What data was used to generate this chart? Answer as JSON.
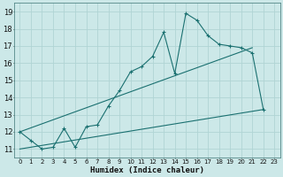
{
  "xlabel": "Humidex (Indice chaleur)",
  "bg_color": "#cce8e8",
  "grid_color": "#b0d4d4",
  "line_color": "#1a7070",
  "xlim": [
    -0.5,
    23.5
  ],
  "ylim": [
    10.5,
    19.5
  ],
  "xticks": [
    0,
    1,
    2,
    3,
    4,
    5,
    6,
    7,
    8,
    9,
    10,
    11,
    12,
    13,
    14,
    15,
    16,
    17,
    18,
    19,
    20,
    21,
    22,
    23
  ],
  "yticks": [
    11,
    12,
    13,
    14,
    15,
    16,
    17,
    18,
    19
  ],
  "line1_x": [
    0,
    1,
    2,
    3,
    4,
    5,
    6,
    7,
    8,
    9,
    10,
    11,
    12,
    13,
    14,
    15,
    16,
    17,
    18,
    19,
    20,
    21,
    22
  ],
  "line1_y": [
    12.0,
    11.5,
    11.0,
    11.1,
    12.2,
    11.1,
    12.3,
    12.4,
    13.5,
    14.4,
    15.5,
    15.8,
    16.4,
    17.8,
    15.4,
    18.9,
    18.5,
    17.6,
    17.1,
    17.0,
    16.9,
    16.6,
    13.3
  ],
  "line2_x": [
    0,
    21
  ],
  "line2_y": [
    12.0,
    16.9
  ],
  "line3_x": [
    0,
    22
  ],
  "line3_y": [
    11.0,
    13.3
  ]
}
